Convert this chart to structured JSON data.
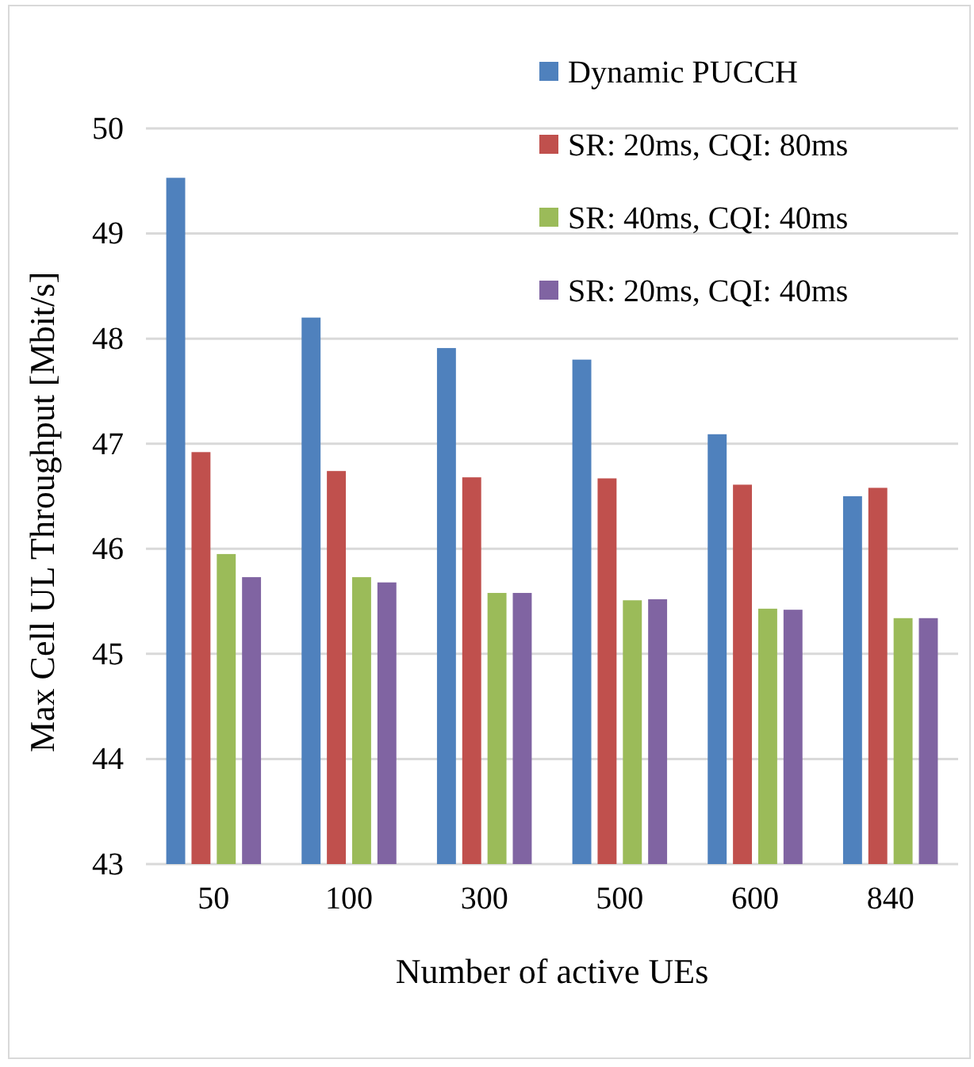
{
  "chart_data": {
    "type": "bar",
    "xlabel": "Number of active UEs",
    "ylabel": "Max Cell UL Throughput [Mbit/s]",
    "categories": [
      "50",
      "100",
      "300",
      "500",
      "600",
      "840"
    ],
    "series": [
      {
        "name": "Dynamic PUCCH",
        "color": "#4f81bd",
        "values": [
          49.53,
          48.2,
          47.91,
          47.8,
          47.09,
          46.5
        ]
      },
      {
        "name": "SR: 20ms, CQI: 80ms",
        "color": "#c0504d",
        "values": [
          46.92,
          46.74,
          46.68,
          46.67,
          46.61,
          46.58
        ]
      },
      {
        "name": "SR: 40ms, CQI: 40ms",
        "color": "#9bbb59",
        "values": [
          45.95,
          45.73,
          45.58,
          45.51,
          45.43,
          45.34
        ]
      },
      {
        "name": "SR: 20ms, CQI: 40ms",
        "color": "#8064a2",
        "values": [
          45.73,
          45.68,
          45.58,
          45.52,
          45.42,
          45.34
        ]
      }
    ],
    "ylim": [
      43,
      50
    ],
    "yticks": [
      43,
      44,
      45,
      46,
      47,
      48,
      49,
      50
    ],
    "grid": "y",
    "legend": "top right"
  }
}
